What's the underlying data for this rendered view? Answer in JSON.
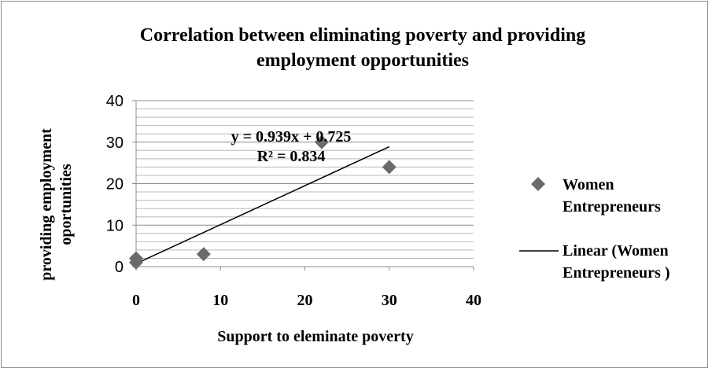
{
  "chart_data": {
    "type": "scatter",
    "title_lines": [
      "Correlation between eliminating poverty and providing",
      "employment opportunities"
    ],
    "xlabel": "Support to eleminate poverty",
    "ylabel_lines": [
      "providing employment",
      "oportunities"
    ],
    "xlim": [
      0,
      40
    ],
    "ylim": [
      0,
      40
    ],
    "xticks": [
      0,
      10,
      20,
      30,
      40
    ],
    "yticks": [
      0,
      10,
      20,
      30,
      40
    ],
    "minor_grid_step": 2,
    "series": [
      {
        "name_lines": [
          "Women",
          "Entrepreneurs"
        ],
        "color": "#6b6b6b",
        "marker": "diamond",
        "points": [
          {
            "x": 0,
            "y": 1
          },
          {
            "x": 0,
            "y": 2
          },
          {
            "x": 8,
            "y": 3
          },
          {
            "x": 22,
            "y": 30
          },
          {
            "x": 30,
            "y": 24
          }
        ]
      }
    ],
    "trendline": {
      "name_lines": [
        "Linear (Women",
        "Entrepreneurs )"
      ],
      "slope": 0.939,
      "intercept": 0.725,
      "x_range": [
        0,
        30
      ],
      "color": "#000000",
      "equation": "y = 0.939x + 0.725",
      "r_squared": "R² = 0.834"
    },
    "legend_position": "right",
    "grid": true
  }
}
